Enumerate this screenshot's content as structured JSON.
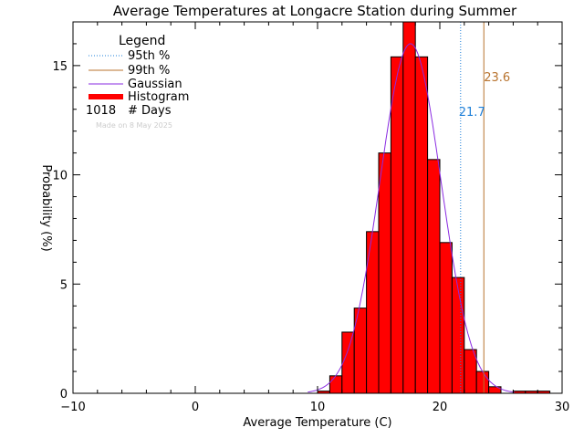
{
  "chart_data": {
    "type": "bar",
    "title": "Average Temperatures at Longacre Station during Summer",
    "xlabel": "Average Temperature (C)",
    "ylabel": "Probability  (%)",
    "xlim": [
      -10,
      30
    ],
    "ylim": [
      0,
      17
    ],
    "xticks": [
      -10,
      0,
      10,
      20,
      30
    ],
    "yticks": [
      0,
      5,
      10,
      15
    ],
    "grid": false,
    "legend_position": "top-left",
    "bin_width": 1,
    "bin_starts": [
      10,
      11,
      12,
      13,
      14,
      15,
      16,
      17,
      18,
      19,
      20,
      21,
      22,
      23,
      24,
      25,
      26,
      27,
      28
    ],
    "histogram": [
      0.1,
      0.8,
      2.8,
      3.9,
      7.4,
      11.0,
      15.4,
      17.6,
      15.4,
      10.7,
      6.9,
      5.3,
      2.0,
      1.0,
      0.3,
      0.0,
      0.1,
      0.1,
      0.1
    ],
    "gaussian": {
      "mean": 17.6,
      "sd": 2.5,
      "peak": 16.0
    },
    "p95": 21.7,
    "p99": 23.6,
    "p95_label": "21.7",
    "p99_label": "23.6",
    "days": "1018",
    "colors": {
      "histogram": "#ff0000",
      "gaussian": "#8a2be2",
      "p95": "#1e7fd8",
      "p99": "#b8732e",
      "axes": "#000000"
    },
    "legend": {
      "title": "Legend",
      "items": [
        "95th %",
        "99th %",
        "Gaussian",
        "Histogram"
      ],
      "days_label": "# Days"
    },
    "footnote": "Made on 8 May 2025"
  }
}
